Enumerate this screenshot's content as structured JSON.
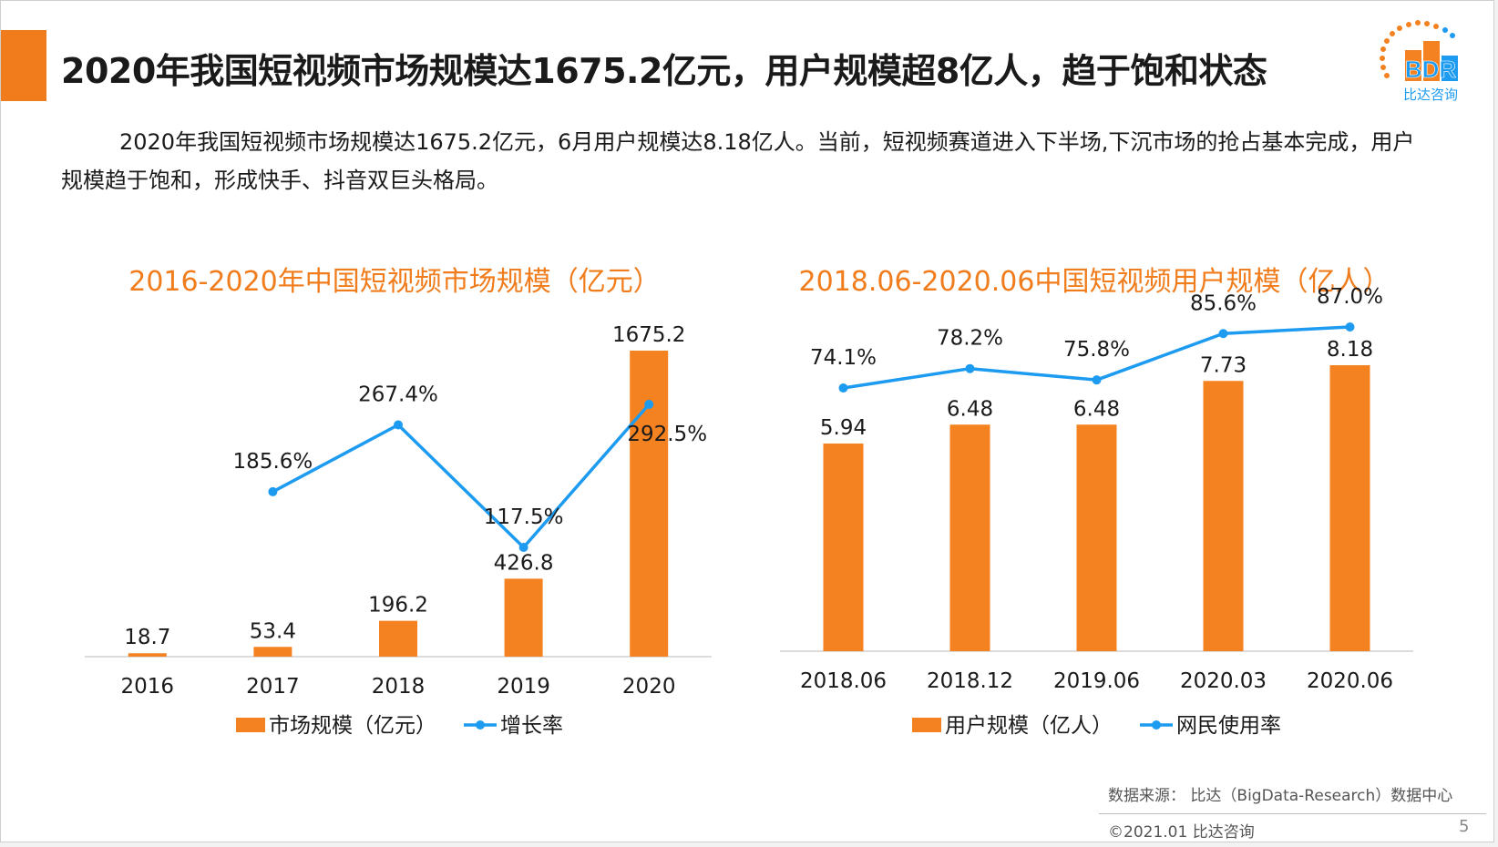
{
  "title": "2020年我国短视频市场规模达1675.2亿元，用户规模超8亿人，趋于饱和状态",
  "logo": {
    "text": "BDR",
    "subtext": "比达咨询"
  },
  "summary": "2020年我国短视频市场规模达1675.2亿元，6月用户规模达8.18亿人。当前，短视频赛道进入下半场,下沉市场的抢占基本完成，用户规模趋于饱和，形成快手、抖音双巨头格局。",
  "colors": {
    "bar": "#f58220",
    "line": "#1d9bf0",
    "accent": "#f07c1c"
  },
  "chart_data": [
    {
      "type": "bar",
      "title": "2016-2020年中国短视频市场规模（亿元）",
      "categories": [
        "2016",
        "2017",
        "2018",
        "2019",
        "2020"
      ],
      "series": [
        {
          "name": "市场规模（亿元）",
          "type": "bar",
          "values": [
            18.7,
            53.4,
            196.2,
            426.8,
            1675.2
          ],
          "labels": [
            "18.7",
            "53.4",
            "196.2",
            "426.8",
            "1675.2"
          ]
        },
        {
          "name": "增长率",
          "type": "line",
          "values": [
            null,
            185.6,
            267.4,
            117.5,
            292.5
          ],
          "labels": [
            "",
            "185.6%",
            "267.4%",
            "117.5%",
            "292.5%"
          ]
        }
      ],
      "grid": false,
      "legend": "bottom"
    },
    {
      "type": "bar",
      "title": "2018.06-2020.06中国短视频用户规模（亿人）",
      "categories": [
        "2018.06",
        "2018.12",
        "2019.06",
        "2020.03",
        "2020.06"
      ],
      "series": [
        {
          "name": "用户规模（亿人）",
          "type": "bar",
          "values": [
            5.94,
            6.48,
            6.48,
            7.73,
            8.18
          ],
          "labels": [
            "5.94",
            "6.48",
            "6.48",
            "7.73",
            "8.18"
          ]
        },
        {
          "name": "网民使用率",
          "type": "line",
          "values": [
            74.1,
            78.2,
            75.8,
            85.6,
            87.0
          ],
          "labels": [
            "74.1%",
            "78.2%",
            "75.8%",
            "85.6%",
            "87.0%"
          ]
        }
      ],
      "grid": false,
      "legend": "bottom"
    }
  ],
  "footer": {
    "source": "数据来源： 比达（BigData-Research）数据中心",
    "copyright": "©2021.01 比达咨询",
    "page": "5"
  }
}
